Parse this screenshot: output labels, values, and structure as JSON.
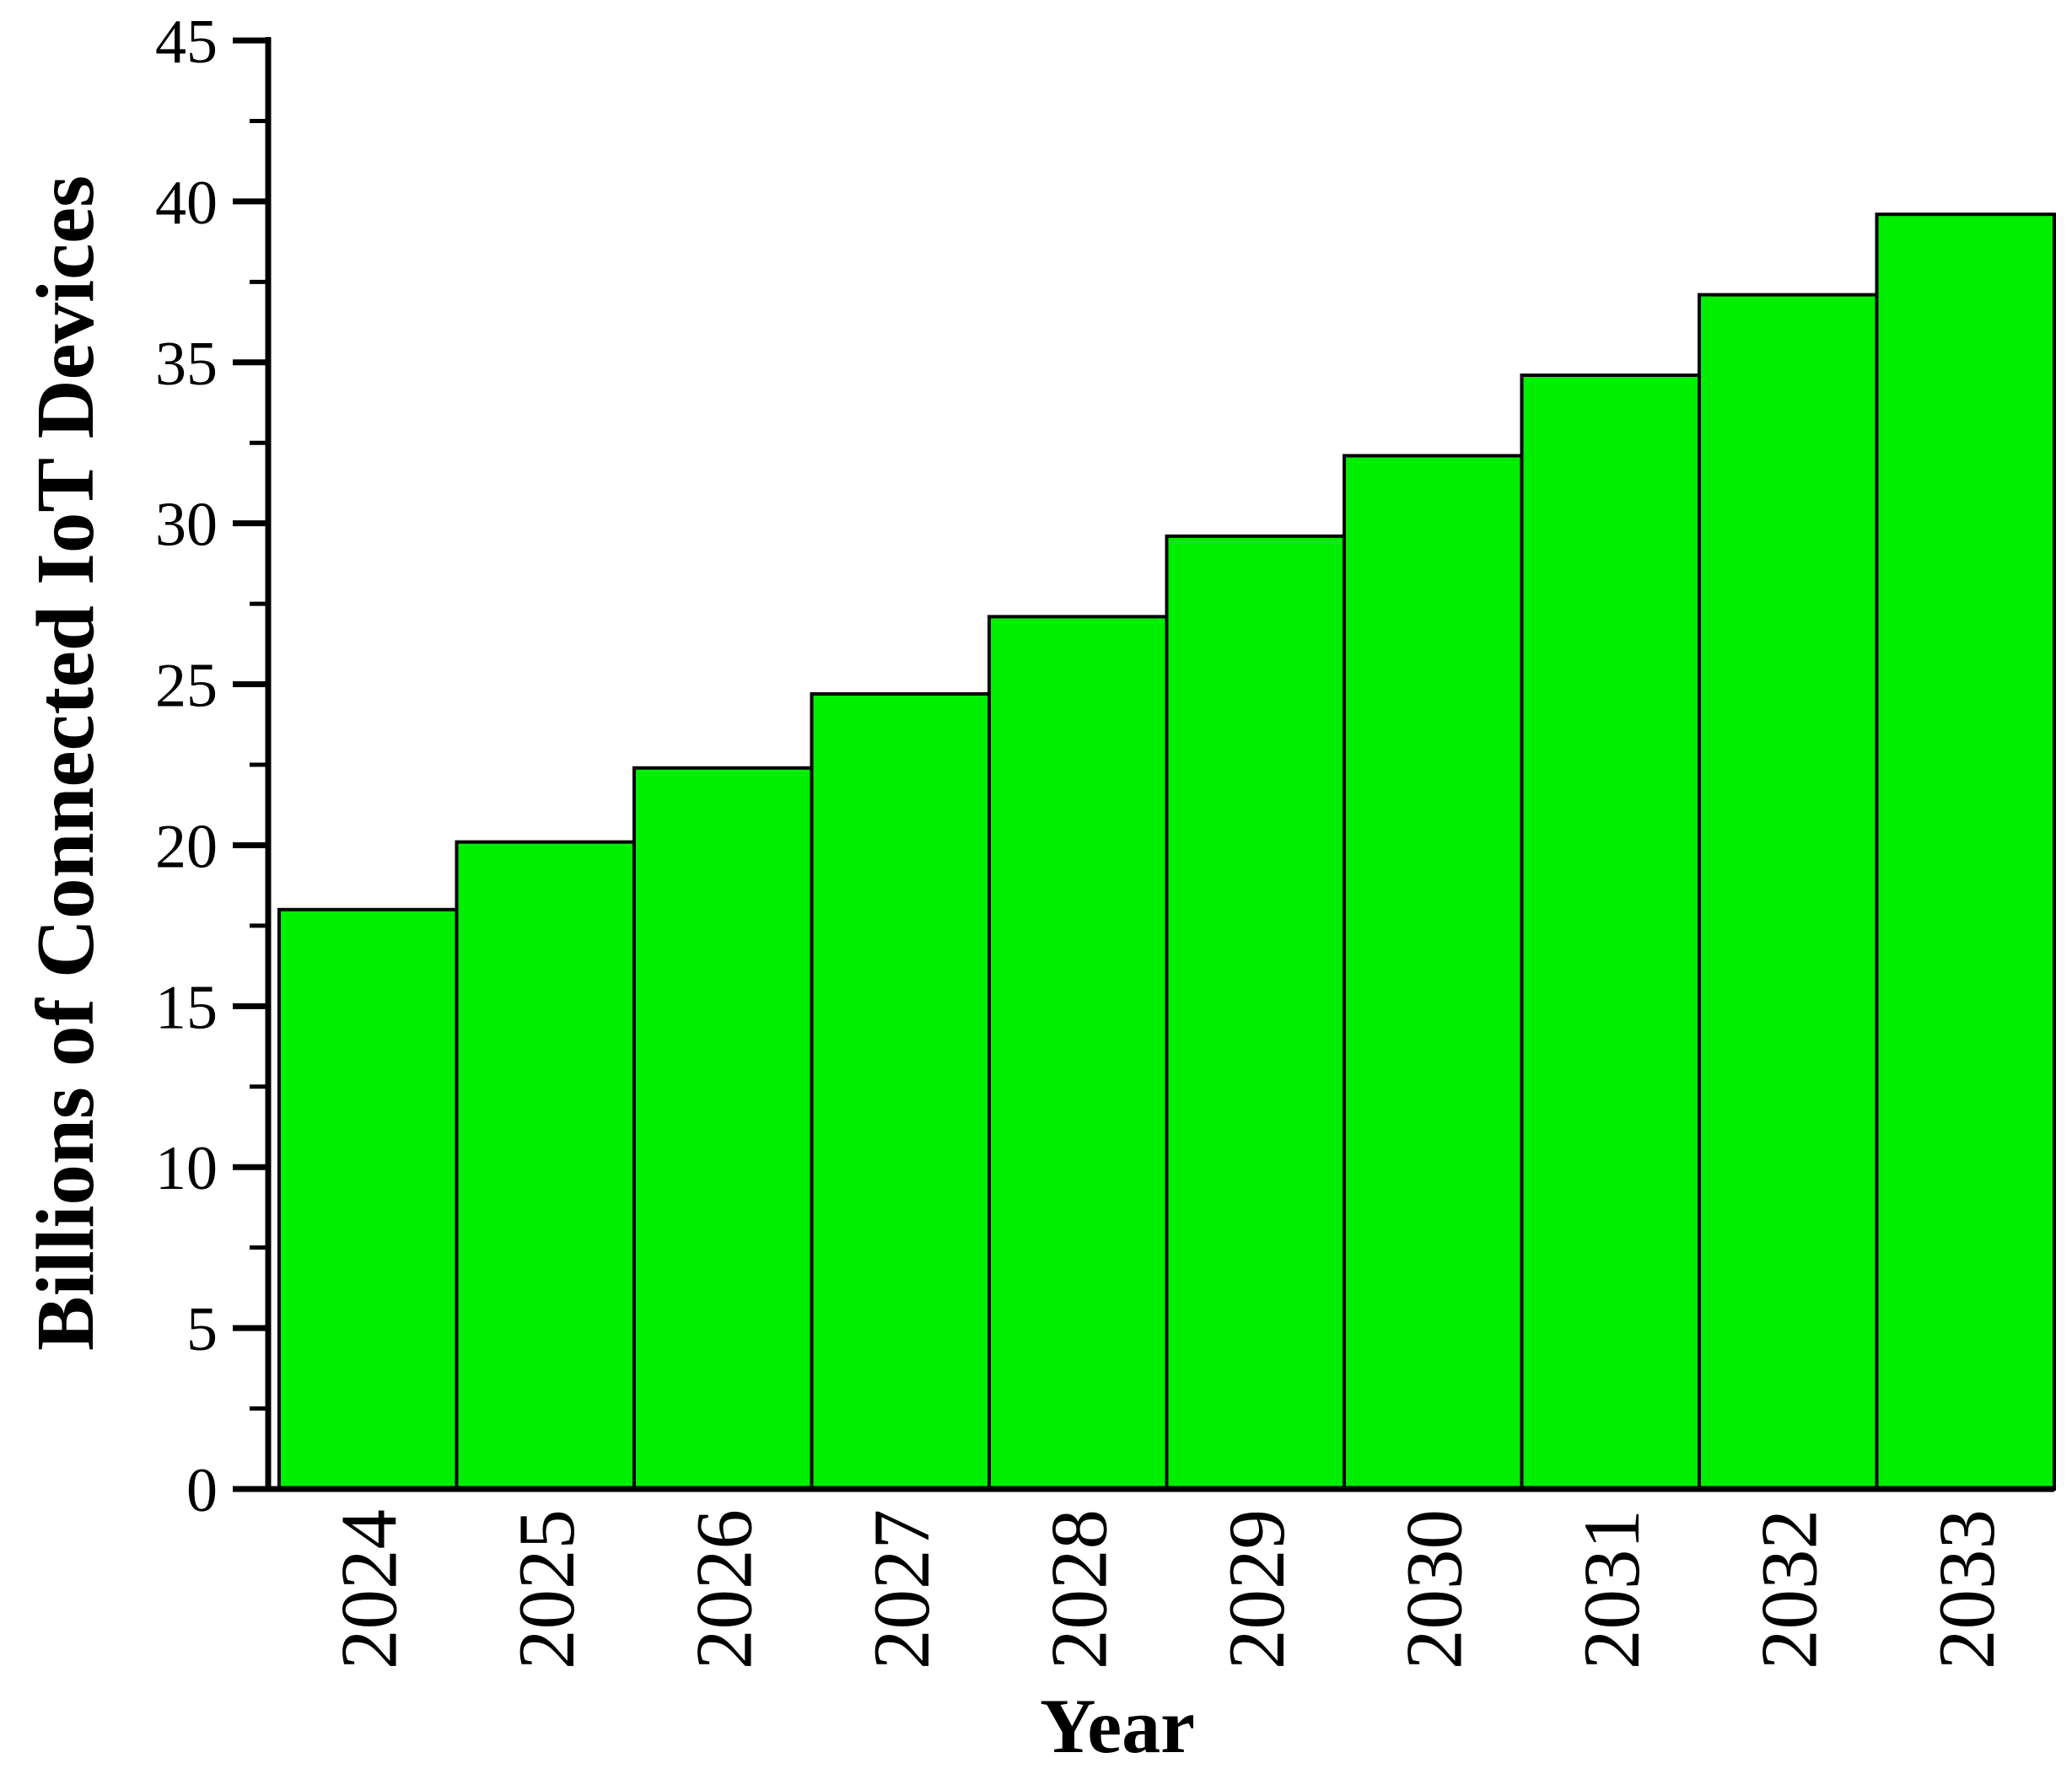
{
  "chart_data": {
    "type": "bar",
    "title": "",
    "categories": [
      "2024",
      "2025",
      "2026",
      "2027",
      "2028",
      "2029",
      "2030",
      "2031",
      "2032",
      "2033"
    ],
    "values": [
      18.0,
      20.1,
      22.4,
      24.7,
      27.1,
      29.6,
      32.1,
      34.6,
      37.1,
      39.6
    ],
    "xlabel": "Year",
    "ylabel": "Billions of Connected IoT Devices",
    "ylim": [
      0,
      45
    ],
    "y_major_ticks": [
      0,
      5,
      10,
      15,
      20,
      25,
      30,
      35,
      40,
      45
    ],
    "y_minor_step": 2.5,
    "grid": false,
    "legend": "none",
    "bar_fill_color": "#00EE00",
    "bar_border_color": "#000000",
    "axis_color": "#000000",
    "background_color": "#FFFFFF"
  }
}
